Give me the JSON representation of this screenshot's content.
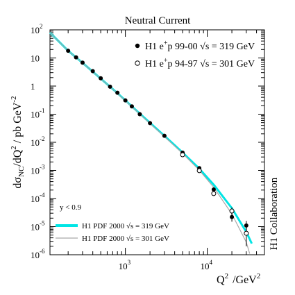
{
  "chart_data": {
    "type": "scatter",
    "title": "Neutral Current",
    "xlabel": {
      "base": "Q",
      "sup": "2",
      "unit": "/GeV",
      "unit_sup": "2"
    },
    "ylabel": {
      "p1": "dσ",
      "sub": "NC",
      "p2": "/dQ",
      "sup1": "2",
      "p3": " / pb GeV",
      "sup2": "-2"
    },
    "x_scale": "log",
    "y_scale": "log",
    "xlim": [
      120,
      50000
    ],
    "ylim": [
      1e-06,
      100
    ],
    "x_ticks": [
      {
        "value": 1000,
        "base": "10",
        "exp": "3"
      },
      {
        "value": 10000,
        "base": "10",
        "exp": "4"
      }
    ],
    "y_ticks": [
      {
        "value": 100,
        "base": "10",
        "exp": "2"
      },
      {
        "value": 10,
        "base": "10",
        "exp": ""
      },
      {
        "value": 1,
        "base": "1",
        "exp": ""
      },
      {
        "value": 0.1,
        "base": "10",
        "exp": "-1"
      },
      {
        "value": 0.01,
        "base": "10",
        "exp": "-2"
      },
      {
        "value": 0.001,
        "base": "10",
        "exp": "-3"
      },
      {
        "value": 0.0001,
        "base": "10",
        "exp": "-4"
      },
      {
        "value": 1e-05,
        "base": "10",
        "exp": "-5"
      },
      {
        "value": 1e-06,
        "base": "10",
        "exp": "-6"
      }
    ],
    "legend_entries": [
      {
        "text1": "H1 e",
        "sup": "+",
        "text2": "p 99-00 √s = 319 GeV",
        "marker": "filled"
      },
      {
        "text1": "H1 e",
        "sup": "+",
        "text2": "p 94-97 √s = 301 GeV",
        "marker": "open"
      }
    ],
    "cut_label": "y < 0.9",
    "curve_legend": [
      {
        "text": "H1 PDF 2000 √s = 319 GeV",
        "color": "#00e5e5"
      },
      {
        "text": "H1 PDF 2000 √s = 301 GeV",
        "color": "#a8a8a8"
      }
    ],
    "side_label": "H1 Collaboration",
    "series": [
      {
        "name": "H1 e+p 99-00 √s = 319 GeV",
        "marker": "filled",
        "points": [
          {
            "x": 200,
            "y": 18
          },
          {
            "x": 250,
            "y": 10.5
          },
          {
            "x": 300,
            "y": 6.8
          },
          {
            "x": 400,
            "y": 3.4
          },
          {
            "x": 500,
            "y": 1.9
          },
          {
            "x": 650,
            "y": 0.95
          },
          {
            "x": 800,
            "y": 0.58
          },
          {
            "x": 1000,
            "y": 0.31
          },
          {
            "x": 1200,
            "y": 0.19
          },
          {
            "x": 1500,
            "y": 0.1
          },
          {
            "x": 2000,
            "y": 0.048
          },
          {
            "x": 3000,
            "y": 0.017
          },
          {
            "x": 5000,
            "y": 0.0043
          },
          {
            "x": 8000,
            "y": 0.0012
          },
          {
            "x": 12000,
            "y": 0.00021
          },
          {
            "x": 20000,
            "y": 2.2e-05,
            "err": [
              1.5e-05,
              3e-05
            ]
          },
          {
            "x": 30000,
            "y": 1.1e-05,
            "err": [
              7e-06,
              1.6e-05
            ]
          }
        ]
      },
      {
        "name": "H1 e+p 94-97 √s = 301 GeV",
        "marker": "open",
        "points": [
          {
            "x": 5000,
            "y": 0.0036
          },
          {
            "x": 8000,
            "y": 0.00098
          },
          {
            "x": 12000,
            "y": 0.00015
          },
          {
            "x": 20000,
            "y": 3.6e-05,
            "err": [
              2.6e-05,
              4.8e-05
            ]
          },
          {
            "x": 30000,
            "y": 5.8e-06,
            "err": [
              2e-06,
              9.5e-06
            ]
          }
        ]
      }
    ],
    "curves": [
      {
        "name": "H1 PDF 2000 √s = 319 GeV",
        "color": "#00e5e5",
        "points": [
          [
            120,
            80
          ],
          [
            200,
            18
          ],
          [
            300,
            6.7
          ],
          [
            500,
            1.85
          ],
          [
            800,
            0.56
          ],
          [
            1200,
            0.19
          ],
          [
            2000,
            0.049
          ],
          [
            3000,
            0.017
          ],
          [
            5000,
            0.0043
          ],
          [
            8000,
            0.00115
          ],
          [
            12000,
            0.00031
          ],
          [
            20000,
            4.5e-05
          ],
          [
            30000,
            6.5e-06
          ],
          [
            35000,
            2.5e-06
          ]
        ]
      },
      {
        "name": "H1 PDF 2000 √s = 301 GeV",
        "color": "#a8a8a8",
        "points": [
          [
            120,
            80
          ],
          [
            200,
            18
          ],
          [
            300,
            6.7
          ],
          [
            500,
            1.84
          ],
          [
            800,
            0.55
          ],
          [
            1200,
            0.185
          ],
          [
            2000,
            0.047
          ],
          [
            3000,
            0.016
          ],
          [
            5000,
            0.004
          ],
          [
            8000,
            0.00102
          ],
          [
            12000,
            0.00025
          ],
          [
            20000,
            2.8e-05
          ],
          [
            30000,
            2.8e-06
          ],
          [
            33000,
            1.1e-06
          ]
        ]
      }
    ]
  }
}
